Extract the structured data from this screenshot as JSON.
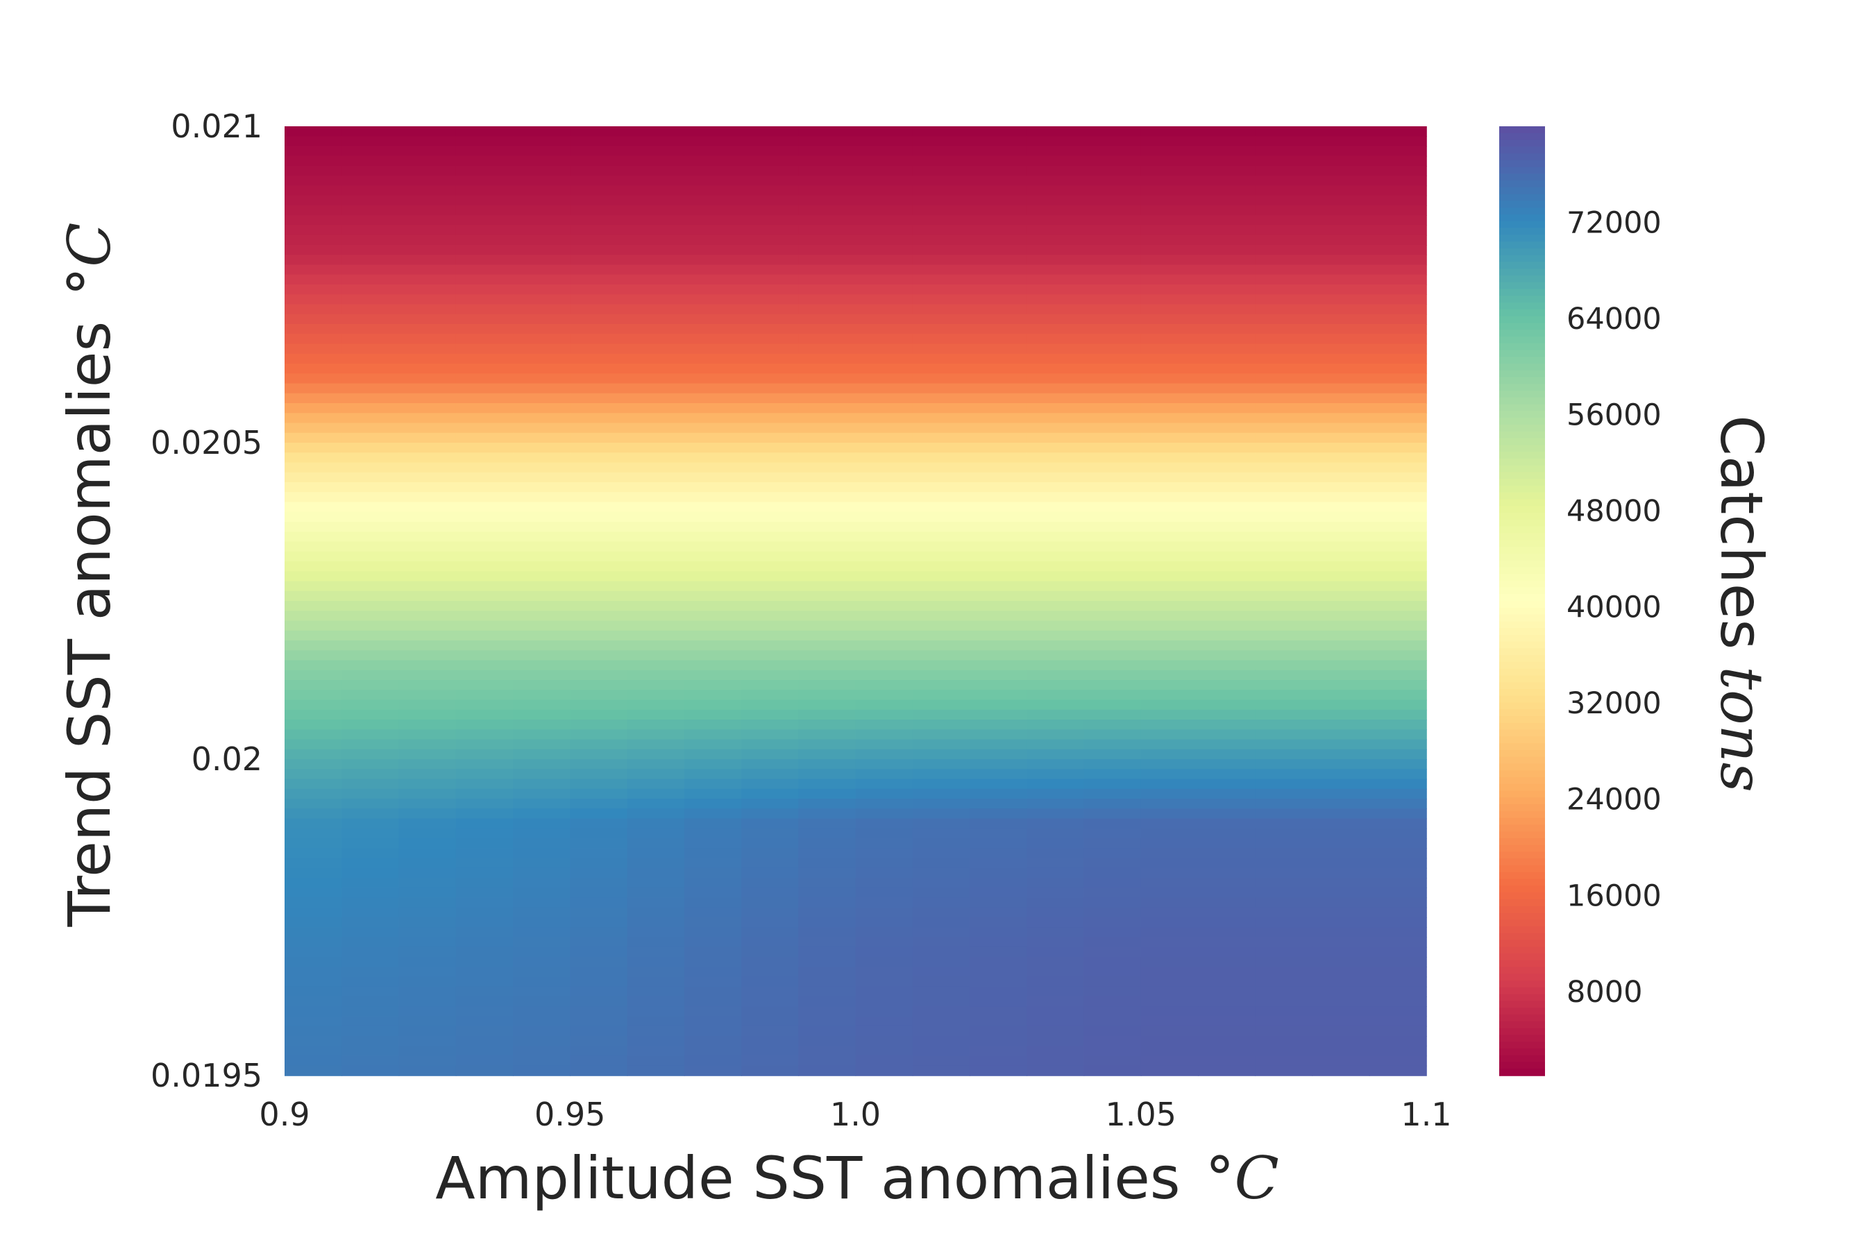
{
  "chart_data": {
    "type": "heatmap",
    "xlabel": "Amplitude SST anomalies",
    "xlabel_unit": "°C",
    "ylabel": "Trend SST anomalies",
    "ylabel_unit": "°C",
    "xlim": [
      0.9,
      1.1
    ],
    "ylim": [
      0.0195,
      0.021
    ],
    "x_ticks": [
      "0.9",
      "0.95",
      "1.0",
      "1.05",
      "1.1"
    ],
    "y_ticks": [
      "0.0195",
      "0.02",
      "0.0205",
      "0.021"
    ],
    "colorbar": {
      "label": "Catches",
      "label_unit": "tons",
      "colormap": "Spectral",
      "range": [
        1000,
        80000
      ],
      "ticks": [
        "8000",
        "16000",
        "24000",
        "32000",
        "40000",
        "48000",
        "56000",
        "64000",
        "72000"
      ],
      "colors": [
        "#9e0142",
        "#d53e4f",
        "#f46d43",
        "#fdae61",
        "#fee08b",
        "#ffffbf",
        "#e6f598",
        "#abdda4",
        "#66c2a5",
        "#3288bd",
        "#5e4fa2"
      ]
    },
    "x": [
      0.9,
      0.95,
      1.0,
      1.05,
      1.1
    ],
    "y": [
      0.0195,
      0.0197,
      0.0199,
      0.02,
      0.02015,
      0.0203,
      0.0204,
      0.02048,
      0.0206,
      0.0208,
      0.021
    ],
    "z": [
      [
        74000,
        75000,
        77000,
        78000,
        78000
      ],
      [
        73000,
        74000,
        76500,
        77500,
        77500
      ],
      [
        71000,
        72500,
        75000,
        76000,
        76000
      ],
      [
        67000,
        68000,
        69500,
        70000,
        70000
      ],
      [
        60000,
        60000,
        60000,
        60000,
        60000
      ],
      [
        48000,
        48000,
        48000,
        48000,
        48000
      ],
      [
        40000,
        40000,
        40000,
        40000,
        40000
      ],
      [
        33000,
        33000,
        33000,
        33000,
        33000
      ],
      [
        18000,
        18000,
        18000,
        18000,
        18000
      ],
      [
        6000,
        6000,
        6000,
        6000,
        6000
      ],
      [
        1000,
        1000,
        1000,
        1000,
        1000
      ]
    ]
  }
}
